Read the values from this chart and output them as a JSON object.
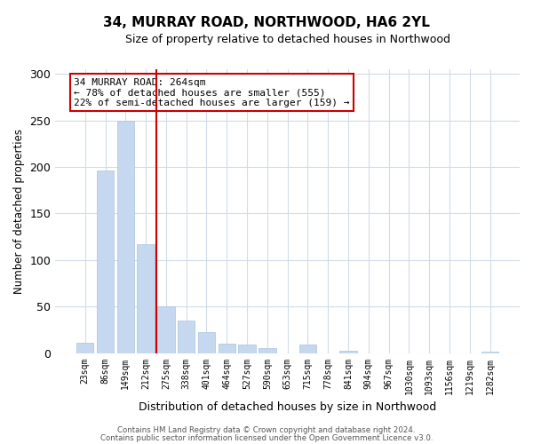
{
  "title": "34, MURRAY ROAD, NORTHWOOD, HA6 2YL",
  "subtitle": "Size of property relative to detached houses in Northwood",
  "xlabel": "Distribution of detached houses by size in Northwood",
  "ylabel": "Number of detached properties",
  "bar_labels": [
    "23sqm",
    "86sqm",
    "149sqm",
    "212sqm",
    "275sqm",
    "338sqm",
    "401sqm",
    "464sqm",
    "527sqm",
    "590sqm",
    "653sqm",
    "715sqm",
    "778sqm",
    "841sqm",
    "904sqm",
    "967sqm",
    "1030sqm",
    "1093sqm",
    "1156sqm",
    "1219sqm",
    "1282sqm"
  ],
  "bar_values": [
    11,
    196,
    250,
    117,
    50,
    35,
    23,
    10,
    9,
    5,
    0,
    9,
    0,
    3,
    0,
    0,
    0,
    0,
    0,
    0,
    2
  ],
  "bar_color": "#c5d8f0",
  "vline_x": 3.5,
  "vline_color": "#cc0000",
  "annotation_line1": "34 MURRAY ROAD: 264sqm",
  "annotation_line2": "← 78% of detached houses are smaller (555)",
  "annotation_line3": "22% of semi-detached houses are larger (159) →",
  "annotation_box_color": "#ffffff",
  "annotation_box_edge": "#cc0000",
  "ylim": [
    0,
    305
  ],
  "yticks": [
    0,
    50,
    100,
    150,
    200,
    250,
    300
  ],
  "footer1": "Contains HM Land Registry data © Crown copyright and database right 2024.",
  "footer2": "Contains public sector information licensed under the Open Government Licence v3.0.",
  "bg_color": "#ffffff",
  "grid_color": "#d0dce8"
}
